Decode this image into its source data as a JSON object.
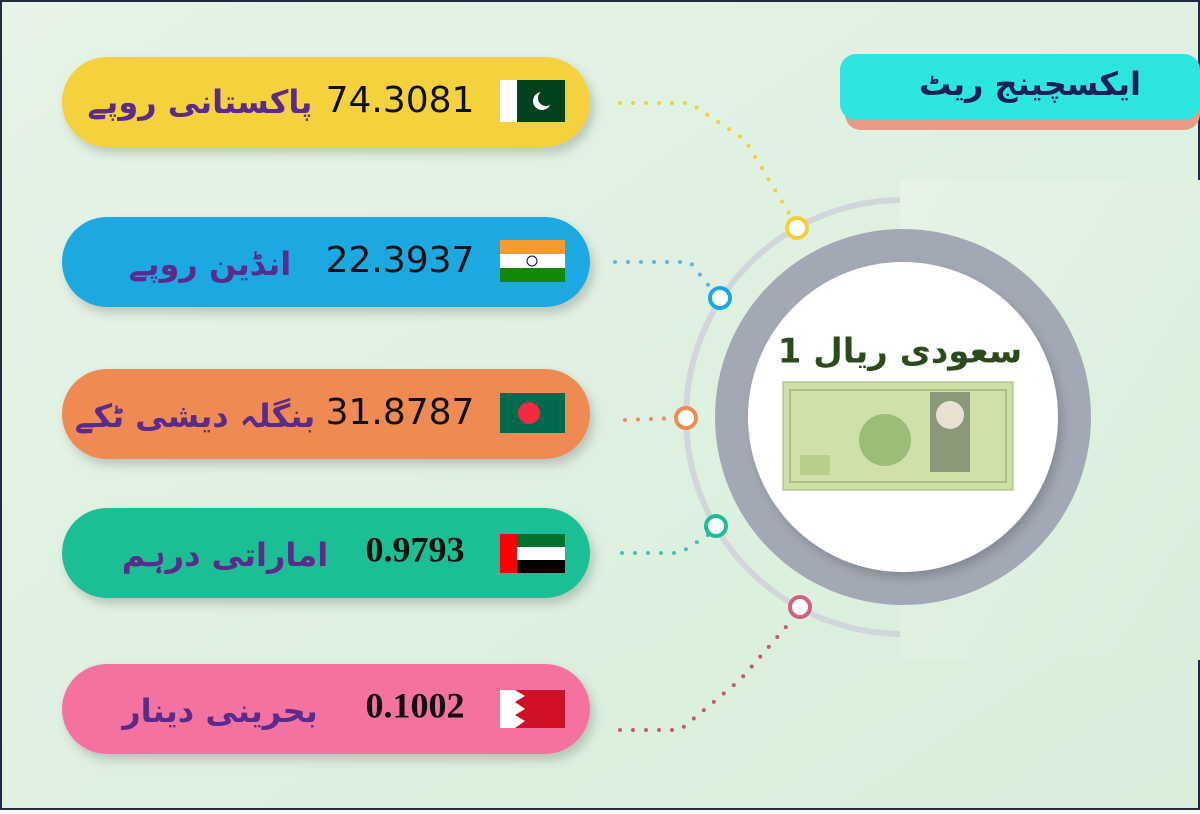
{
  "header": {
    "title": "ایکسچینج ریٹ"
  },
  "base": {
    "label": "1 سعودی ریال"
  },
  "rates": [
    {
      "name": "پاکستانی روپے",
      "rate": "74.3081"
    },
    {
      "name": "انڈین روپے",
      "rate": "22.3937"
    },
    {
      "name": "بنگلہ دیشی ٹکے",
      "rate": "31.8787"
    },
    {
      "name": "اماراتی درہم",
      "rate": "0.9793"
    },
    {
      "name": "بحرینی دینار",
      "rate": "0.1002"
    }
  ]
}
